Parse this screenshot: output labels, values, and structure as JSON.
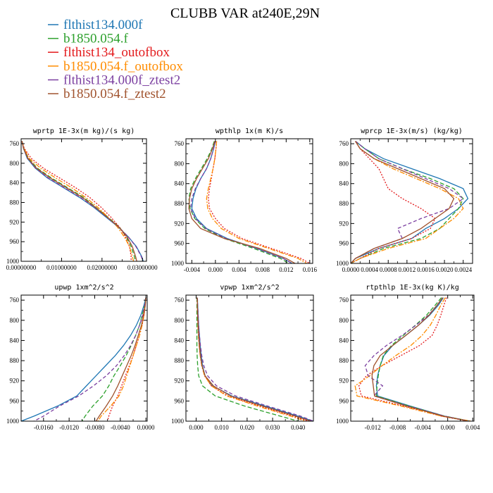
{
  "title": "CLUBB VAR at240E,29N",
  "legend": [
    {
      "name": "flthist134.000f",
      "color": "#1f77b4"
    },
    {
      "name": "b1850.054.f",
      "color": "#2ca02c"
    },
    {
      "name": "flthist134_outofbox",
      "color": "#e31a1c"
    },
    {
      "name": "b1850.054.f_outofbox",
      "color": "#ff8c00"
    },
    {
      "name": "flthist134.000f_ztest2",
      "color": "#7b3fa0"
    },
    {
      "name": "b1850.054.f_ztest2",
      "color": "#a0522d"
    }
  ],
  "chart_data": [
    {
      "type": "line",
      "title": "wprtp  1E-3x(m kg)/(s kg)",
      "xlim": [
        0,
        0.031
      ],
      "ylim": [
        1000,
        750
      ],
      "xticks": [
        0,
        0.01,
        0.02,
        0.03
      ],
      "xticklabels": [
        "0.00000000",
        "0.01000000",
        "0.02000000",
        "0.03000000"
      ],
      "yticks": [
        760,
        800,
        840,
        880,
        920,
        960,
        1000
      ],
      "y": [
        755,
        770,
        790,
        810,
        830,
        850,
        870,
        890,
        910,
        930,
        950,
        970,
        990,
        1000
      ],
      "series": [
        {
          "values": [
            0.0002,
            0.0006,
            0.0015,
            0.0035,
            0.0065,
            0.0105,
            0.0145,
            0.018,
            0.021,
            0.024,
            0.0265,
            0.0285,
            0.0298,
            0.0302
          ]
        },
        {
          "values": [
            0.0002,
            0.0007,
            0.0018,
            0.004,
            0.0075,
            0.0115,
            0.0155,
            0.0185,
            0.0215,
            0.0243,
            0.026,
            0.0272,
            0.028,
            0.0283
          ]
        },
        {
          "values": [
            0.0002,
            0.0008,
            0.0025,
            0.0055,
            0.0095,
            0.0135,
            0.017,
            0.0198,
            0.0222,
            0.0243,
            0.0258,
            0.0268,
            0.0272,
            0.0272
          ]
        },
        {
          "values": [
            0.0002,
            0.0007,
            0.002,
            0.0048,
            0.0085,
            0.0125,
            0.016,
            0.019,
            0.0215,
            0.0238,
            0.0255,
            0.0268,
            0.0275,
            0.0278
          ]
        },
        {
          "values": [
            0.0002,
            0.0006,
            0.0016,
            0.0036,
            0.0067,
            0.0107,
            0.0147,
            0.0182,
            0.0212,
            0.0241,
            0.0265,
            0.0284,
            0.0297,
            0.0301
          ]
        },
        {
          "values": [
            0.0002,
            0.0006,
            0.0017,
            0.0038,
            0.0072,
            0.0112,
            0.0152,
            0.0184,
            0.0213,
            0.0242,
            0.0262,
            0.0275,
            0.0283,
            0.0286
          ]
        }
      ]
    },
    {
      "type": "line",
      "title": "wpthlp  1x(m K)/s",
      "xlim": [
        -0.005,
        0.0165
      ],
      "ylim": [
        1000,
        750
      ],
      "xticks": [
        -0.004,
        0,
        0.004,
        0.008,
        0.012,
        0.016
      ],
      "xticklabels": [
        "-0.004",
        "0.000",
        "0.004",
        "0.008",
        "0.012",
        "0.016"
      ],
      "yticks": [
        760,
        800,
        840,
        880,
        920,
        960,
        1000
      ],
      "y": [
        755,
        770,
        790,
        810,
        830,
        850,
        870,
        890,
        910,
        930,
        950,
        970,
        990,
        1000
      ],
      "series": [
        {
          "values": [
            0.0,
            -0.0003,
            -0.0008,
            -0.0015,
            -0.0025,
            -0.0033,
            -0.0038,
            -0.004,
            -0.0032,
            -0.0015,
            0.002,
            0.007,
            0.0115,
            0.013
          ]
        },
        {
          "values": [
            -0.0002,
            -0.0006,
            -0.0014,
            -0.0024,
            -0.0034,
            -0.0042,
            -0.0045,
            -0.0043,
            -0.0035,
            -0.0018,
            0.0015,
            0.0065,
            0.011,
            0.0125
          ]
        },
        {
          "values": [
            0.0002,
            0.0001,
            -0.0001,
            -0.0004,
            -0.0007,
            -0.001,
            -0.0012,
            -0.001,
            0.0,
            0.0015,
            0.0045,
            0.0095,
            0.0145,
            0.016
          ]
        },
        {
          "values": [
            0.0002,
            0.0001,
            -0.0001,
            -0.0004,
            -0.0008,
            -0.0012,
            -0.0015,
            -0.0013,
            -0.0005,
            0.001,
            0.004,
            0.009,
            0.014,
            0.0155
          ]
        },
        {
          "values": [
            0.0,
            -0.0003,
            -0.0008,
            -0.0015,
            -0.0025,
            -0.0034,
            -0.004,
            -0.0042,
            -0.0034,
            -0.0016,
            0.0018,
            0.007,
            0.0115,
            0.013
          ]
        },
        {
          "values": [
            -0.0001,
            -0.0005,
            -0.0012,
            -0.0022,
            -0.0032,
            -0.004,
            -0.0044,
            -0.0045,
            -0.004,
            -0.0025,
            0.0015,
            0.0075,
            0.012,
            0.0135
          ]
        }
      ]
    },
    {
      "type": "line",
      "title": "wprcp  1E-3x(m/s) (kg/kg)",
      "xlim": [
        0,
        0.0026
      ],
      "ylim": [
        1000,
        750
      ],
      "xticks": [
        0,
        0.0004,
        0.0008,
        0.0012,
        0.0016,
        0.002,
        0.0024
      ],
      "xticklabels": [
        "0.0000",
        "0.0004",
        "0.0008",
        "0.0012",
        "0.0016",
        "0.0020",
        "0.0024"
      ],
      "yticks": [
        760,
        800,
        840,
        880,
        920,
        960,
        1000
      ],
      "y": [
        755,
        770,
        790,
        810,
        830,
        850,
        870,
        890,
        910,
        930,
        950,
        970,
        990,
        1000
      ],
      "series": [
        {
          "values": [
            0.0001,
            0.0003,
            0.0007,
            0.0013,
            0.0019,
            0.0024,
            0.0025,
            0.0023,
            0.002,
            0.0016,
            0.0013,
            0.0006,
            0.0001,
            0.0
          ]
        },
        {
          "values": [
            0.0001,
            0.0003,
            0.0006,
            0.0011,
            0.0017,
            0.0022,
            0.0024,
            0.0023,
            0.0021,
            0.0019,
            0.0015,
            0.0007,
            0.0002,
            0.0
          ]
        },
        {
          "values": [
            0.0001,
            0.0002,
            0.0004,
            0.0006,
            0.0007,
            0.0008,
            0.0011,
            0.0015,
            0.0018,
            0.0017,
            0.0013,
            0.0006,
            0.0002,
            0.0
          ]
        },
        {
          "values": [
            0.0001,
            0.0002,
            0.0005,
            0.0009,
            0.0014,
            0.0019,
            0.0023,
            0.0024,
            0.0022,
            0.0019,
            0.0016,
            0.0008,
            0.0002,
            0.0
          ]
        },
        {
          "values": [
            0.0001,
            0.0003,
            0.0006,
            0.0011,
            0.0016,
            0.0021,
            0.0024,
            0.0021,
            0.0015,
            0.001,
            0.0011,
            0.0005,
            0.0001,
            0.0
          ]
        },
        {
          "values": [
            0.0001,
            0.0002,
            0.0005,
            0.001,
            0.0015,
            0.002,
            0.0022,
            0.0021,
            0.0018,
            0.0015,
            0.0011,
            0.0005,
            0.0001,
            0.0
          ]
        }
      ]
    },
    {
      "type": "line",
      "title": "upwp  1xm^2/s^2",
      "xlim": [
        -0.0195,
        0.0002
      ],
      "ylim": [
        1000,
        750
      ],
      "xticks": [
        -0.016,
        -0.012,
        -0.008,
        -0.004,
        0
      ],
      "xticklabels": [
        "-0.0160",
        "-0.0120",
        "-0.0080",
        "-0.0040",
        "0.0000"
      ],
      "yticks": [
        760,
        800,
        840,
        880,
        920,
        960,
        1000
      ],
      "y": [
        755,
        770,
        790,
        810,
        830,
        850,
        870,
        890,
        910,
        930,
        950,
        970,
        990,
        1000
      ],
      "series": [
        {
          "values": [
            0.0,
            -0.0003,
            -0.0008,
            -0.0015,
            -0.0024,
            -0.0035,
            -0.0048,
            -0.0063,
            -0.0078,
            -0.0093,
            -0.0108,
            -0.0138,
            -0.0175,
            -0.0195
          ]
        },
        {
          "values": [
            0.0,
            -0.0002,
            -0.0006,
            -0.001,
            -0.0016,
            -0.0023,
            -0.0031,
            -0.004,
            -0.005,
            -0.0058,
            -0.0068,
            -0.0083,
            -0.0095,
            -0.01
          ]
        },
        {
          "values": [
            0.0,
            -0.0001,
            -0.0003,
            -0.0006,
            -0.001,
            -0.0015,
            -0.002,
            -0.0026,
            -0.0032,
            -0.0038,
            -0.0044,
            -0.0052,
            -0.0058,
            -0.006
          ]
        },
        {
          "values": [
            0.0,
            -0.0001,
            -0.0003,
            -0.0006,
            -0.001,
            -0.0015,
            -0.002,
            -0.0025,
            -0.003,
            -0.0035,
            -0.0042,
            -0.0055,
            -0.007,
            -0.0075
          ]
        },
        {
          "values": [
            0.0,
            -0.0002,
            -0.0005,
            -0.001,
            -0.0016,
            -0.0024,
            -0.0034,
            -0.0046,
            -0.0062,
            -0.0082,
            -0.0105,
            -0.0135,
            -0.016,
            -0.0175
          ]
        },
        {
          "values": [
            0.0,
            -0.0001,
            -0.0004,
            -0.0007,
            -0.0012,
            -0.0017,
            -0.0023,
            -0.003,
            -0.0037,
            -0.0044,
            -0.0052,
            -0.0062,
            -0.0073,
            -0.0078
          ]
        }
      ]
    },
    {
      "type": "line",
      "title": "vpwp  1xm^2/s^2",
      "xlim": [
        -0.004,
        0.046
      ],
      "ylim": [
        1000,
        750
      ],
      "xticks": [
        0,
        0.01,
        0.02,
        0.03,
        0.04
      ],
      "xticklabels": [
        "0.000",
        "0.010",
        "0.020",
        "0.030",
        "0.040"
      ],
      "yticks": [
        760,
        800,
        840,
        880,
        920,
        960,
        1000
      ],
      "y": [
        755,
        770,
        790,
        810,
        830,
        850,
        870,
        890,
        910,
        930,
        950,
        970,
        990,
        1000
      ],
      "series": [
        {
          "values": [
            0.0005,
            0.0006,
            0.0008,
            0.001,
            0.0013,
            0.0016,
            0.002,
            0.0025,
            0.0035,
            0.0065,
            0.014,
            0.027,
            0.04,
            0.046
          ]
        },
        {
          "values": [
            0.0003,
            0.0003,
            0.0003,
            0.0003,
            0.0003,
            0.0003,
            0.0004,
            0.0006,
            0.001,
            0.0025,
            0.0075,
            0.019,
            0.033,
            0.04
          ]
        },
        {
          "values": [
            0.0005,
            0.0005,
            0.0006,
            0.0007,
            0.0009,
            0.0012,
            0.0016,
            0.0022,
            0.0033,
            0.006,
            0.0125,
            0.025,
            0.038,
            0.044
          ]
        },
        {
          "values": [
            0.0005,
            0.0005,
            0.0006,
            0.0007,
            0.0009,
            0.0012,
            0.0016,
            0.0022,
            0.0033,
            0.006,
            0.012,
            0.024,
            0.037,
            0.043
          ]
        },
        {
          "values": [
            0.0005,
            0.0006,
            0.0008,
            0.001,
            0.0013,
            0.0017,
            0.0022,
            0.003,
            0.0045,
            0.008,
            0.0155,
            0.028,
            0.041,
            0.046
          ]
        },
        {
          "values": [
            0.0004,
            0.0005,
            0.0006,
            0.0008,
            0.001,
            0.0013,
            0.0017,
            0.0023,
            0.0035,
            0.0068,
            0.0135,
            0.026,
            0.039,
            0.045
          ]
        }
      ]
    },
    {
      "type": "line",
      "title": "rtpthlp  1E-3x(kg K)/kg",
      "xlim": [
        -0.0155,
        0.0042
      ],
      "ylim": [
        1000,
        750
      ],
      "xticks": [
        -0.012,
        -0.008,
        -0.004,
        0,
        0.004
      ],
      "xticklabels": [
        "-0.012",
        "-0.008",
        "-0.004",
        "0.000",
        "0.004"
      ],
      "yticks": [
        760,
        800,
        840,
        880,
        920,
        960,
        1000
      ],
      "y": [
        755,
        770,
        790,
        810,
        830,
        850,
        870,
        890,
        910,
        930,
        950,
        970,
        990,
        1000
      ],
      "series": [
        {
          "values": [
            -0.0007,
            -0.0015,
            -0.0029,
            -0.0047,
            -0.0067,
            -0.0088,
            -0.0102,
            -0.0108,
            -0.0112,
            -0.0114,
            -0.0112,
            -0.006,
            -0.0005,
            0.0035
          ]
        },
        {
          "values": [
            -0.001,
            -0.002,
            -0.0034,
            -0.0052,
            -0.0071,
            -0.009,
            -0.0103,
            -0.0108,
            -0.0111,
            -0.0113,
            -0.0114,
            -0.0062,
            -0.0005,
            0.0036
          ]
        },
        {
          "values": [
            -0.0002,
            -0.0006,
            -0.0011,
            -0.0017,
            -0.0025,
            -0.0045,
            -0.0075,
            -0.0105,
            -0.013,
            -0.0142,
            -0.0138,
            -0.007,
            -0.001,
            0.0033
          ]
        },
        {
          "values": [
            -0.0004,
            -0.0011,
            -0.0019,
            -0.0028,
            -0.0041,
            -0.0059,
            -0.0083,
            -0.0105,
            -0.0125,
            -0.0148,
            -0.0145,
            -0.0075,
            -0.001,
            0.0038
          ]
        },
        {
          "values": [
            -0.0008,
            -0.0017,
            -0.0031,
            -0.0051,
            -0.0073,
            -0.0098,
            -0.0118,
            -0.0132,
            -0.0127,
            -0.0104,
            -0.0118,
            -0.0064,
            -0.0005,
            0.0034
          ]
        },
        {
          "values": [
            -0.0008,
            -0.0017,
            -0.003,
            -0.0047,
            -0.0067,
            -0.0088,
            -0.0108,
            -0.0118,
            -0.0121,
            -0.0119,
            -0.0117,
            -0.0066,
            -0.0007,
            0.0033
          ]
        }
      ]
    }
  ]
}
